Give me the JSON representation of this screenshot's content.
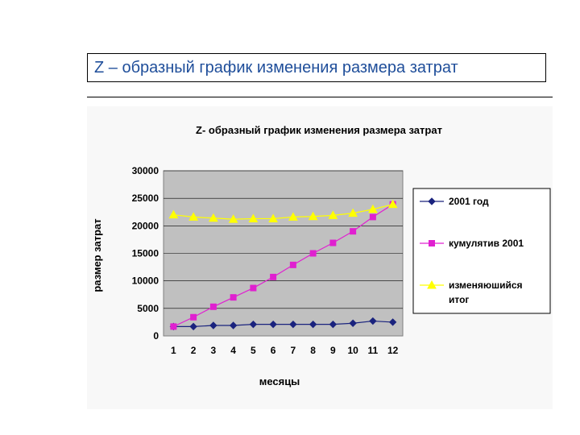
{
  "slide": {
    "title": "Z – образный график изменения размера затрат"
  },
  "colors": {
    "plot_background": "#c0c0c0",
    "series_2001": "#1a237e",
    "series_cumulative": "#e020d0",
    "series_changing": "#ffff00"
  },
  "chart_data": {
    "type": "line",
    "title": "Z- образный график изменения размера затрат",
    "xlabel": "месяцы",
    "ylabel": "размер затрат",
    "categories": [
      "1",
      "2",
      "3",
      "4",
      "5",
      "6",
      "7",
      "8",
      "9",
      "10",
      "11",
      "12"
    ],
    "ylim": [
      0,
      30000
    ],
    "yticks": [
      0,
      5000,
      10000,
      15000,
      20000,
      25000,
      30000
    ],
    "grid": true,
    "legend_position": "right",
    "series": [
      {
        "name": "2001 год",
        "marker": "diamond",
        "color": "#1a237e",
        "values": [
          1700,
          1700,
          1900,
          1900,
          2100,
          2100,
          2100,
          2100,
          2100,
          2300,
          2700,
          2500
        ]
      },
      {
        "name": "кумулятив 2001",
        "marker": "square",
        "color": "#e020d0",
        "values": [
          1700,
          3400,
          5300,
          7000,
          8700,
          10700,
          12900,
          15000,
          16900,
          19000,
          21600,
          23900
        ]
      },
      {
        "name": "изменяюшийся итог",
        "marker": "triangle",
        "color": "#ffff00",
        "values": [
          22000,
          21600,
          21400,
          21200,
          21300,
          21300,
          21600,
          21700,
          21900,
          22300,
          23000,
          23900
        ]
      }
    ]
  }
}
